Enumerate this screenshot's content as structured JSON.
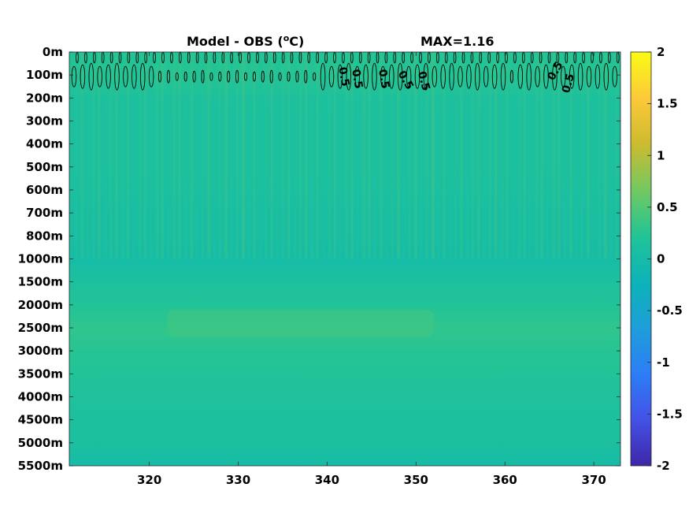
{
  "chart_data": {
    "type": "heatmap",
    "title": "Model - OBS (",
    "title_unit_sup": "o",
    "title_unit_end": "C)",
    "max_label": "MAX=1.16",
    "x_ticks": [
      320,
      330,
      340,
      350,
      360,
      370
    ],
    "xlim": [
      311,
      373
    ],
    "y_tick_labels": [
      "0m",
      "100m",
      "200m",
      "300m",
      "400m",
      "500m",
      "600m",
      "700m",
      "800m",
      "1000m",
      "1500m",
      "2000m",
      "2500m",
      "3000m",
      "3500m",
      "4000m",
      "4500m",
      "5000m",
      "5500m"
    ],
    "colorbar": {
      "ticks": [
        "2",
        "1.5",
        "1",
        "0.5",
        "0",
        "-0.5",
        "-1",
        "-1.5",
        "-2"
      ],
      "clim": [
        -2,
        2
      ],
      "colormap": "parula",
      "stops": [
        "#3e26a8",
        "#4351e6",
        "#2c7ef6",
        "#1e9ed9",
        "#0cb3b8",
        "#22c496",
        "#73c961",
        "#ccbb30",
        "#fdc938",
        "#f9fb15"
      ]
    },
    "contour_level": 0.5,
    "contour_labels": [
      {
        "text": "0.5",
        "x": 341.5,
        "depth_index": 1.1,
        "angle": 80
      },
      {
        "text": "0.5",
        "x": 343.0,
        "depth_index": 1.2,
        "angle": 80
      },
      {
        "text": "0.5",
        "x": 346.0,
        "depth_index": 1.2,
        "angle": 80
      },
      {
        "text": "0.5",
        "x": 348.5,
        "depth_index": 1.3,
        "angle": 60
      },
      {
        "text": "0.5",
        "x": 350.5,
        "depth_index": 1.3,
        "angle": 75
      },
      {
        "text": "0.5",
        "x": 366.0,
        "depth_index": 0.9,
        "angle": -60
      },
      {
        "text": "0.5",
        "x": 367.5,
        "depth_index": 1.4,
        "angle": -75
      }
    ],
    "depth_profile": [
      {
        "depth": "0m",
        "value": 0.2
      },
      {
        "depth": "100m",
        "value": 0.25
      },
      {
        "depth": "200m",
        "value": 0.12
      },
      {
        "depth": "300m",
        "value": 0.1
      },
      {
        "depth": "400m",
        "value": 0.1
      },
      {
        "depth": "500m",
        "value": 0.1
      },
      {
        "depth": "600m",
        "value": 0.08
      },
      {
        "depth": "700m",
        "value": 0.05
      },
      {
        "depth": "800m",
        "value": 0.05
      },
      {
        "depth": "1000m",
        "value": 0.0
      },
      {
        "depth": "1500m",
        "value": 0.12
      },
      {
        "depth": "2000m",
        "value": 0.2
      },
      {
        "depth": "2500m",
        "value": 0.3
      },
      {
        "depth": "3000m",
        "value": 0.25
      },
      {
        "depth": "3500m",
        "value": 0.2
      },
      {
        "depth": "4000m",
        "value": 0.15
      },
      {
        "depth": "4500m",
        "value": 0.12
      },
      {
        "depth": "5000m",
        "value": 0.1
      },
      {
        "depth": "5500m",
        "value": 0.0
      }
    ],
    "warm_patch": {
      "x_range": [
        322,
        352
      ],
      "depth_range": [
        "2000m",
        "2500m"
      ],
      "value": 0.4
    },
    "grid": false,
    "legend": "none"
  }
}
